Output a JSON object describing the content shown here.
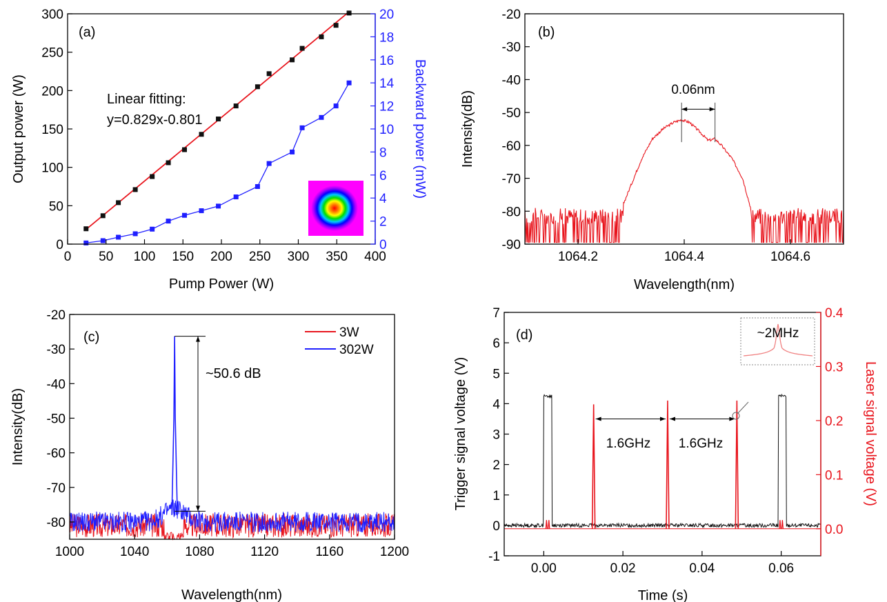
{
  "chart_data": [
    {
      "panel": "(a)",
      "type": "line",
      "xlabel": "Pump Power (W)",
      "ylabel": "Output power (W)",
      "y2label": "Backward power (mW)",
      "xlim": [
        0,
        400
      ],
      "ylim": [
        0,
        300
      ],
      "y2lim": [
        0,
        20
      ],
      "xticks": [
        0,
        50,
        100,
        150,
        200,
        250,
        300,
        350,
        400
      ],
      "yticks": [
        0,
        50,
        100,
        150,
        200,
        250,
        300
      ],
      "y2ticks": [
        0,
        2,
        4,
        6,
        8,
        10,
        12,
        14,
        16,
        18,
        20
      ],
      "fit_label_1": "Linear fitting:",
      "fit_label_2": "y=0.829x-0.801",
      "series": [
        {
          "axis": "left",
          "color": "#111111",
          "x": [
            24,
            46,
            66,
            88,
            110,
            131,
            152,
            174,
            196,
            219,
            247,
            262,
            292,
            305,
            330,
            349,
            366
          ],
          "y": [
            20,
            37,
            54,
            71,
            88,
            106,
            123,
            143,
            163,
            180,
            205,
            222,
            240,
            255,
            270,
            285,
            301
          ]
        },
        {
          "axis": "right",
          "color": "#1f1fff",
          "x": [
            24,
            46,
            66,
            88,
            110,
            131,
            152,
            174,
            196,
            219,
            247,
            262,
            292,
            305,
            330,
            349,
            366
          ],
          "y": [
            0.1,
            0.3,
            0.6,
            0.9,
            1.3,
            2.0,
            2.5,
            2.9,
            3.3,
            4.1,
            5.0,
            7.0,
            8.0,
            10.1,
            11.0,
            12.0,
            14.0
          ]
        }
      ],
      "fit_line": {
        "color": "#e8141c",
        "x": [
          24,
          366
        ],
        "y": [
          19.1,
          302.6
        ]
      }
    },
    {
      "panel": "(b)",
      "type": "line",
      "xlabel": "Wavelength(nm)",
      "ylabel": "Intensity(dB)",
      "xlim": [
        1064.1,
        1064.7
      ],
      "ylim": [
        -90,
        -20
      ],
      "xticks": [
        1064.2,
        1064.4,
        1064.6
      ],
      "yticks": [
        -90,
        -80,
        -70,
        -60,
        -50,
        -40,
        -30,
        -20
      ],
      "annotation": "0.06nm",
      "peak_markers": [
        1064.395,
        1064.458
      ],
      "envelope": {
        "x": [
          1064.1,
          1064.26,
          1064.28,
          1064.3,
          1064.32,
          1064.34,
          1064.36,
          1064.38,
          1064.395,
          1064.41,
          1064.43,
          1064.445,
          1064.458,
          1064.47,
          1064.49,
          1064.51,
          1064.52,
          1064.53,
          1064.54,
          1064.7
        ],
        "y": [
          -86,
          -85,
          -80,
          -72,
          -64,
          -58,
          -55,
          -53,
          -52.2,
          -53,
          -56,
          -58.5,
          -58,
          -60,
          -64,
          -70,
          -76,
          -82,
          -86,
          -86
        ]
      },
      "series": [
        {
          "color": "#e8141c"
        }
      ]
    },
    {
      "panel": "(c)",
      "type": "line",
      "xlabel": "Wavelength(nm)",
      "ylabel": "Intensity(dB)",
      "xlim": [
        1000,
        1200
      ],
      "ylim": [
        -85,
        -20
      ],
      "xticks": [
        1000,
        1040,
        1080,
        1120,
        1160,
        1200
      ],
      "yticks": [
        -80,
        -70,
        -60,
        -50,
        -40,
        -30,
        -20
      ],
      "annotation": "~50.6 dB",
      "peak": {
        "x": 1064.6,
        "y": -26.3,
        "floor": -76.9
      },
      "series": [
        {
          "name": "3W",
          "color": "#e8141c",
          "noise_floor": -81
        },
        {
          "name": "302W",
          "color": "#1f1fff",
          "noise_floor": -80
        }
      ]
    },
    {
      "panel": "(d)",
      "type": "line",
      "xlabel": "Time (s)",
      "ylabel": "Trigger signal voltage (V)",
      "y2label": "Laser signal voltage (V)",
      "xlim": [
        -0.01,
        0.07
      ],
      "ylim": [
        -1,
        7
      ],
      "y2lim": [
        -0.05,
        0.4
      ],
      "xticks": [
        0.0,
        0.02,
        0.04,
        0.06
      ],
      "xtick_labels": [
        "0.00",
        "0.02",
        "0.04",
        "0.06"
      ],
      "yticks": [
        -1,
        0,
        1,
        2,
        3,
        4,
        5,
        6,
        7
      ],
      "y2ticks": [
        0.0,
        0.1,
        0.2,
        0.3,
        0.4
      ],
      "y2tick_labels": [
        "0.0",
        "0.1",
        "0.2",
        "0.3",
        "0.4"
      ],
      "trigger_pulses": [
        {
          "start": 0.0,
          "end": 0.0021,
          "level": 4.25
        },
        {
          "start": 0.0593,
          "end": 0.0612,
          "level": 4.25
        }
      ],
      "laser_pulses": [
        {
          "t": 0.0126,
          "v": 0.23
        },
        {
          "t": 0.0313,
          "v": 0.237
        },
        {
          "t": 0.0488,
          "v": 0.237
        }
      ],
      "laser_small_pulses": [
        {
          "t": 0.0007,
          "v": 0.016
        },
        {
          "t": 0.0013,
          "v": 0.016
        },
        {
          "t": 0.0597,
          "v": 0.016
        },
        {
          "t": 0.0603,
          "v": 0.016
        }
      ],
      "interval_label_1": "1.6GHz",
      "interval_label_2": "1.6GHz",
      "inset_label": "~2MHz",
      "series": [
        {
          "color": "#111111"
        },
        {
          "color": "#e8141c"
        }
      ]
    }
  ]
}
